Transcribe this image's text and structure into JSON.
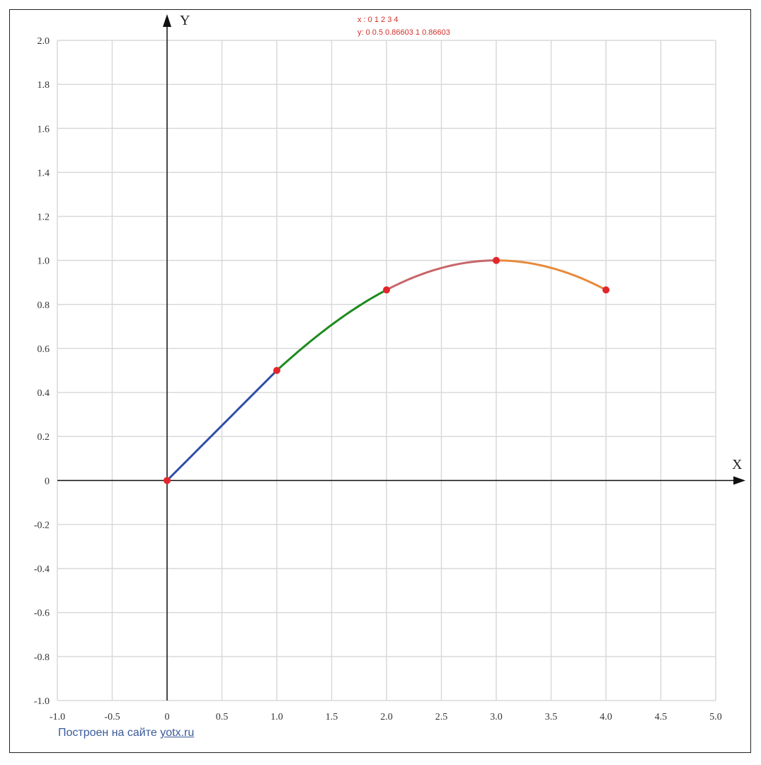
{
  "chart_data": {
    "type": "line",
    "xlabel": "X",
    "ylabel": "Y",
    "xlim": [
      -1.0,
      5.0
    ],
    "ylim": [
      -1.0,
      2.0
    ],
    "x_ticks": [
      "-1.0",
      "-0.5",
      "0",
      "0.5",
      "1.0",
      "1.5",
      "2.0",
      "2.5",
      "3.0",
      "3.5",
      "4.0",
      "4.5",
      "5.0"
    ],
    "y_ticks": [
      "-1.0",
      "-0.8",
      "-0.6",
      "-0.4",
      "-0.2",
      "0",
      "0.2",
      "0.4",
      "0.6",
      "0.8",
      "1.0",
      "1.2",
      "1.4",
      "1.6",
      "1.8",
      "2.0"
    ],
    "grid": true,
    "points": {
      "x": [
        0,
        1,
        2,
        3,
        4
      ],
      "y": [
        0,
        0.5,
        0.86603,
        1,
        0.86603
      ],
      "color": "#e3262b"
    },
    "segments": [
      {
        "x": [
          0,
          1
        ],
        "color": "#2f4fa6"
      },
      {
        "x": [
          1,
          2
        ],
        "color": "#1e8a1e"
      },
      {
        "x": [
          2,
          3
        ],
        "color": "#c8666a"
      },
      {
        "x": [
          3,
          4
        ],
        "color": "#e88a3c"
      }
    ],
    "annotation": [
      "x : 0 1 2 3 4",
      "y: 0 0.5 0.86603 1 0.86603"
    ]
  },
  "credit": {
    "text": "Построен на сайте ",
    "link": "yotx.ru"
  }
}
